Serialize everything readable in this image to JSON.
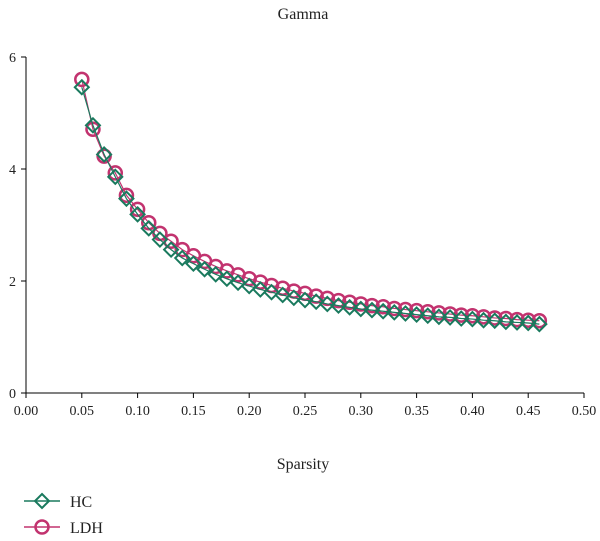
{
  "chart_data": {
    "type": "line",
    "title": "Gamma",
    "xlabel": "Sparsity",
    "ylabel": "",
    "xlim": [
      0,
      0.5
    ],
    "ylim": [
      0,
      6
    ],
    "xticks": [
      "0.00",
      "0.05",
      "0.10",
      "0.15",
      "0.20",
      "0.25",
      "0.30",
      "0.35",
      "0.40",
      "0.45",
      "0.50"
    ],
    "yticks": [
      "0",
      "2",
      "4",
      "6"
    ],
    "grid": false,
    "legend": "bottom-left",
    "x": [
      0.05,
      0.06,
      0.07,
      0.08,
      0.09,
      0.1,
      0.11,
      0.12,
      0.13,
      0.14,
      0.15,
      0.16,
      0.17,
      0.18,
      0.19,
      0.2,
      0.21,
      0.22,
      0.23,
      0.24,
      0.25,
      0.26,
      0.27,
      0.28,
      0.29,
      0.3,
      0.31,
      0.32,
      0.33,
      0.34,
      0.35,
      0.36,
      0.37,
      0.38,
      0.39,
      0.4,
      0.41,
      0.42,
      0.43,
      0.44,
      0.45,
      0.46
    ],
    "series": [
      {
        "name": "HC",
        "marker": "diamond",
        "color": "#1a7a5e",
        "values": [
          5.46,
          4.78,
          4.26,
          3.86,
          3.47,
          3.19,
          2.94,
          2.74,
          2.56,
          2.41,
          2.31,
          2.21,
          2.12,
          2.04,
          1.97,
          1.91,
          1.85,
          1.8,
          1.75,
          1.7,
          1.66,
          1.63,
          1.59,
          1.56,
          1.53,
          1.5,
          1.48,
          1.46,
          1.44,
          1.42,
          1.4,
          1.38,
          1.36,
          1.35,
          1.33,
          1.32,
          1.3,
          1.29,
          1.27,
          1.26,
          1.25,
          1.23
        ]
      },
      {
        "name": "LDH",
        "marker": "circle",
        "color": "#c2336f",
        "values": [
          5.6,
          4.71,
          4.23,
          3.93,
          3.53,
          3.28,
          3.04,
          2.85,
          2.71,
          2.56,
          2.45,
          2.35,
          2.26,
          2.18,
          2.11,
          2.04,
          1.98,
          1.92,
          1.87,
          1.82,
          1.78,
          1.73,
          1.69,
          1.65,
          1.62,
          1.59,
          1.56,
          1.54,
          1.51,
          1.49,
          1.47,
          1.45,
          1.43,
          1.41,
          1.39,
          1.38,
          1.36,
          1.34,
          1.33,
          1.31,
          1.3,
          1.29
        ]
      }
    ]
  }
}
